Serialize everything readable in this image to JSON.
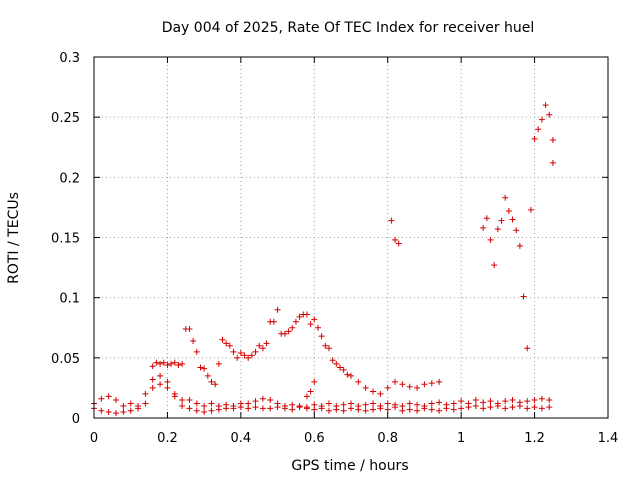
{
  "chart_data": {
    "type": "scatter",
    "title": "Day 004 of 2025, Rate Of TEC Index for receiver huel",
    "xlabel": "GPS time / hours",
    "ylabel": "ROTI / TECUs",
    "xlim": [
      0,
      1.4
    ],
    "ylim": [
      0,
      0.3
    ],
    "x_ticks": [
      "0",
      "0.2",
      "0.4",
      "0.6",
      "0.8",
      "1",
      "1.2",
      "1.4"
    ],
    "y_ticks": [
      "0",
      "0.05",
      "0.1",
      "0.15",
      "0.2",
      "0.25",
      "0.3"
    ],
    "grid": true,
    "marker": "plus",
    "color": "#d40000",
    "series": [
      {
        "x": [
          0.0,
          0.02,
          0.04,
          0.06,
          0.08,
          0.1,
          0.12,
          0.14,
          0.16,
          0.18,
          0.2,
          0.22,
          0.24,
          0.26,
          0.28,
          0.3,
          0.32,
          0.34,
          0.36,
          0.38,
          0.4,
          0.42,
          0.44,
          0.46,
          0.48,
          0.5,
          0.52,
          0.54,
          0.56,
          0.58,
          0.6,
          0.62,
          0.64,
          0.66,
          0.68,
          0.7,
          0.72,
          0.74,
          0.76,
          0.78,
          0.8,
          0.82,
          0.84,
          0.86,
          0.88,
          0.9,
          0.92,
          0.94,
          0.96,
          0.98,
          1.0,
          1.02,
          1.04,
          1.06,
          1.08,
          1.1,
          1.12,
          1.14,
          1.16,
          1.18,
          1.2,
          1.22,
          1.24
        ],
        "y": [
          0.008,
          0.006,
          0.005,
          0.004,
          0.005,
          0.006,
          0.008,
          0.012,
          0.025,
          0.028,
          0.025,
          0.018,
          0.01,
          0.008,
          0.006,
          0.005,
          0.006,
          0.007,
          0.008,
          0.008,
          0.009,
          0.008,
          0.009,
          0.008,
          0.008,
          0.009,
          0.008,
          0.007,
          0.009,
          0.008,
          0.007,
          0.008,
          0.006,
          0.007,
          0.006,
          0.008,
          0.007,
          0.006,
          0.007,
          0.008,
          0.007,
          0.009,
          0.006,
          0.007,
          0.006,
          0.008,
          0.007,
          0.006,
          0.008,
          0.007,
          0.008,
          0.009,
          0.01,
          0.008,
          0.009,
          0.01,
          0.008,
          0.009,
          0.01,
          0.008,
          0.009,
          0.008,
          0.009
        ]
      },
      {
        "x": [
          0.0,
          0.02,
          0.04,
          0.06,
          0.08,
          0.1,
          0.12,
          0.14,
          0.16,
          0.18,
          0.2,
          0.22,
          0.24,
          0.26,
          0.28,
          0.3,
          0.32,
          0.34,
          0.36,
          0.38,
          0.4,
          0.42,
          0.44,
          0.46,
          0.48,
          0.5,
          0.52,
          0.54,
          0.56,
          0.58,
          0.6,
          0.62,
          0.64,
          0.66,
          0.68,
          0.7,
          0.72,
          0.74,
          0.76,
          0.78,
          0.8,
          0.82,
          0.84,
          0.86,
          0.88,
          0.9,
          0.92,
          0.94,
          0.96,
          0.98,
          1.0,
          1.02,
          1.04,
          1.06,
          1.08,
          1.1,
          1.12,
          1.14,
          1.16,
          1.18,
          1.2,
          1.22,
          1.24
        ],
        "y": [
          0.012,
          0.016,
          0.018,
          0.015,
          0.01,
          0.012,
          0.01,
          0.02,
          0.032,
          0.035,
          0.03,
          0.02,
          0.015,
          0.015,
          0.012,
          0.01,
          0.012,
          0.01,
          0.011,
          0.01,
          0.012,
          0.012,
          0.014,
          0.016,
          0.015,
          0.012,
          0.01,
          0.011,
          0.01,
          0.009,
          0.011,
          0.01,
          0.012,
          0.01,
          0.011,
          0.012,
          0.01,
          0.011,
          0.012,
          0.01,
          0.012,
          0.011,
          0.01,
          0.012,
          0.011,
          0.01,
          0.012,
          0.013,
          0.011,
          0.012,
          0.014,
          0.012,
          0.015,
          0.013,
          0.014,
          0.012,
          0.014,
          0.015,
          0.013,
          0.014,
          0.015,
          0.016,
          0.015
        ]
      },
      {
        "x": [
          0.16,
          0.17,
          0.18,
          0.19,
          0.2,
          0.21,
          0.22,
          0.23,
          0.24
        ],
        "y": [
          0.043,
          0.046,
          0.045,
          0.046,
          0.044,
          0.045,
          0.046,
          0.044,
          0.045
        ]
      },
      {
        "x": [
          0.25,
          0.26,
          0.27,
          0.28,
          0.29,
          0.3,
          0.31,
          0.32,
          0.33,
          0.34,
          0.35,
          0.36,
          0.37,
          0.38,
          0.39,
          0.4,
          0.41,
          0.42,
          0.43,
          0.44,
          0.45,
          0.46,
          0.47,
          0.48,
          0.49,
          0.5,
          0.51,
          0.52,
          0.53,
          0.54,
          0.55,
          0.56,
          0.57,
          0.58,
          0.59,
          0.6,
          0.61,
          0.62,
          0.63,
          0.64,
          0.65,
          0.66,
          0.67,
          0.68,
          0.69,
          0.7,
          0.72,
          0.74,
          0.76,
          0.78,
          0.8,
          0.82,
          0.84,
          0.86,
          0.88,
          0.9,
          0.92,
          0.94
        ],
        "y": [
          0.074,
          0.074,
          0.064,
          0.055,
          0.042,
          0.041,
          0.035,
          0.03,
          0.028,
          0.045,
          0.065,
          0.062,
          0.06,
          0.055,
          0.05,
          0.054,
          0.052,
          0.05,
          0.052,
          0.055,
          0.06,
          0.058,
          0.062,
          0.08,
          0.08,
          0.09,
          0.07,
          0.07,
          0.072,
          0.075,
          0.08,
          0.084,
          0.086,
          0.086,
          0.078,
          0.082,
          0.075,
          0.068,
          0.06,
          0.058,
          0.048,
          0.045,
          0.042,
          0.04,
          0.036,
          0.035,
          0.03,
          0.025,
          0.022,
          0.02,
          0.025,
          0.03,
          0.028,
          0.026,
          0.025,
          0.028,
          0.029,
          0.03
        ]
      },
      {
        "x": [
          0.58,
          0.59,
          0.6,
          0.81,
          0.82,
          0.83,
          1.06,
          1.07,
          1.08,
          1.09,
          1.1,
          1.11,
          1.12,
          1.13,
          1.14,
          1.15,
          1.16,
          1.17,
          1.18,
          1.19,
          1.2,
          1.21,
          1.22,
          1.23,
          1.24,
          1.25
        ],
        "y": [
          0.018,
          0.022,
          0.03,
          0.164,
          0.148,
          0.145,
          0.158,
          0.166,
          0.148,
          0.127,
          0.157,
          0.164,
          0.183,
          0.172,
          0.165,
          0.156,
          0.143,
          0.101,
          0.058,
          0.173,
          0.232,
          0.24,
          0.248,
          0.26,
          0.252,
          0.231
        ]
      },
      {
        "x": [
          1.25
        ],
        "y": [
          0.212
        ]
      }
    ]
  }
}
